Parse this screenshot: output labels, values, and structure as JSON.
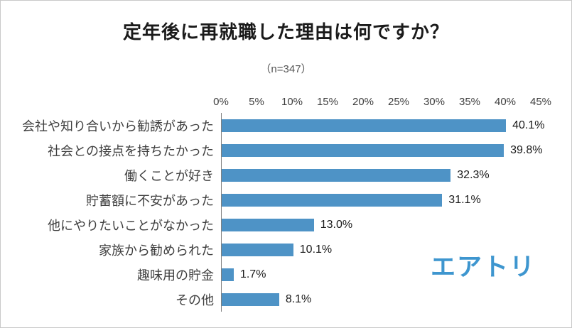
{
  "title": "定年後に再就職した理由は何ですか？",
  "subtitle": "（n=347）",
  "logo_text": "エアトリ",
  "colors": {
    "bar": "#4e93c6",
    "logo": "#3e96cf",
    "axis_line": "#7f7f7f"
  },
  "chart_data": {
    "type": "bar",
    "orientation": "horizontal",
    "title": "定年後に再就職した理由は何ですか？",
    "subtitle": "（n=347）",
    "categories": [
      "会社や知り合いから勧誘があった",
      "社会との接点を持ちたかった",
      "働くことが好き",
      "貯蓄額に不安があった",
      "他にやりたいことがなかった",
      "家族から勧められた",
      "趣味用の貯金",
      "その他"
    ],
    "values": [
      40.1,
      39.8,
      32.3,
      31.1,
      13.0,
      10.1,
      1.7,
      8.1
    ],
    "value_labels": [
      "40.1%",
      "39.8%",
      "32.3%",
      "31.1%",
      "13.0%",
      "10.1%",
      "1.7%",
      "8.1%"
    ],
    "xlim": [
      0,
      45
    ],
    "xtick_values": [
      0,
      5,
      10,
      15,
      20,
      25,
      30,
      35,
      40,
      45
    ],
    "xtick_labels": [
      "0%",
      "5%",
      "10%",
      "15%",
      "20%",
      "25%",
      "30%",
      "35%",
      "40%",
      "45%"
    ],
    "grid": false,
    "legend": false,
    "axis_position": "top"
  }
}
